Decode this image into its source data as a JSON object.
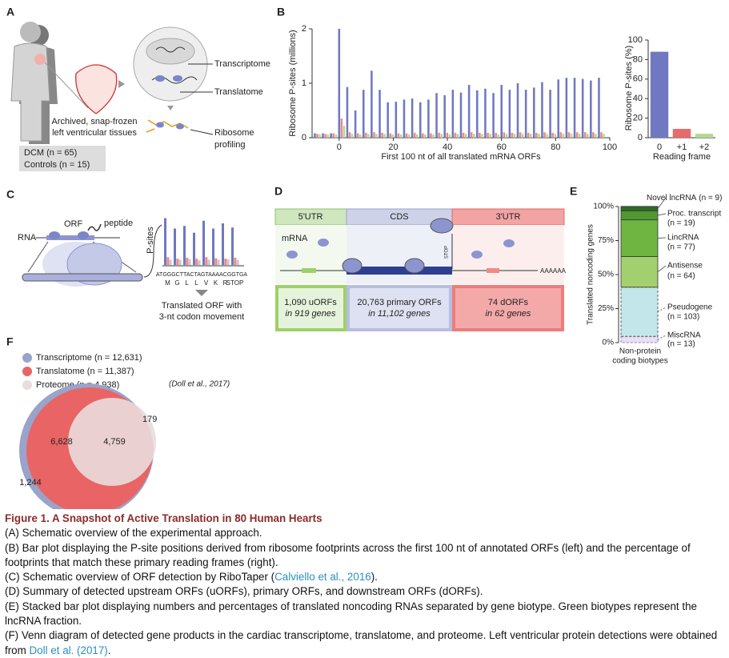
{
  "panel_labels": [
    "A",
    "B",
    "C",
    "D",
    "E",
    "F"
  ],
  "panel_a": {
    "tissue": [
      "Archived, snap-frozen",
      "left ventricular tissues"
    ],
    "dcm": "DCM (n = 65)",
    "controls": "Controls (n = 15)",
    "transcriptome": "Transcriptome",
    "translatome": "Translatome",
    "ribosome_profiling": [
      "Ribosome",
      "profiling"
    ]
  },
  "panel_b": {
    "type": "bar",
    "ylabel": "Ribosome P-sites (millions)",
    "xlabel": "First 100 nt of all translated mRNA ORFs",
    "x": [
      -9,
      -6,
      -3,
      0,
      3,
      6,
      9,
      12,
      15,
      18,
      21,
      24,
      27,
      30,
      33,
      36,
      39,
      42,
      45,
      48,
      51,
      54,
      57,
      60,
      63,
      66,
      69,
      72,
      75,
      78,
      81,
      84,
      87,
      90,
      93,
      96
    ],
    "series": [
      {
        "color": "#6f78c0",
        "values": [
          0.08,
          0.08,
          0.08,
          2.0,
          0.93,
          0.5,
          0.88,
          1.23,
          0.88,
          0.65,
          0.66,
          0.7,
          0.72,
          0.65,
          0.7,
          0.82,
          0.78,
          0.88,
          0.83,
          0.97,
          0.87,
          0.9,
          0.82,
          0.97,
          0.88,
          1.0,
          0.88,
          0.92,
          1.02,
          0.88,
          1.07,
          1.1,
          1.1,
          1.08,
          1.05,
          1.1
        ]
      },
      {
        "color": "#ec8a8a",
        "values": [
          0.07,
          0.07,
          0.08,
          0.35,
          0.1,
          0.08,
          0.09,
          0.1,
          0.09,
          0.08,
          0.08,
          0.08,
          0.09,
          0.08,
          0.08,
          0.09,
          0.09,
          0.09,
          0.09,
          0.1,
          0.09,
          0.09,
          0.09,
          0.1,
          0.09,
          0.1,
          0.09,
          0.09,
          0.1,
          0.09,
          0.1,
          0.1,
          0.1,
          0.1,
          0.1,
          0.1
        ]
      },
      {
        "color": "#b5d98f",
        "values": [
          0.06,
          0.06,
          0.06,
          0.22,
          0.07,
          0.06,
          0.07,
          0.07,
          0.07,
          0.06,
          0.06,
          0.06,
          0.06,
          0.06,
          0.06,
          0.07,
          0.06,
          0.07,
          0.07,
          0.07,
          0.07,
          0.07,
          0.06,
          0.07,
          0.07,
          0.07,
          0.07,
          0.07,
          0.07,
          0.07,
          0.07,
          0.07,
          0.07,
          0.07,
          0.07,
          0.07
        ]
      }
    ],
    "xlim": [
      -10,
      100
    ],
    "xticks": [
      0,
      20,
      40,
      60,
      80,
      100
    ],
    "ylim": [
      0,
      2
    ],
    "yticks": [
      0,
      1,
      2
    ]
  },
  "panel_b_frame": {
    "type": "bar",
    "ylabel": "Ribosome P-sites (%)",
    "xlabel": "Reading frame",
    "categories": [
      "0",
      "+1",
      "+2"
    ],
    "values": [
      88,
      9,
      4
    ],
    "colors": [
      "#6f78c0",
      "#e86a6a",
      "#b5d98f"
    ],
    "ylim": [
      0,
      100
    ],
    "yticks": [
      0,
      20,
      40,
      60,
      80,
      100
    ]
  },
  "panel_c": {
    "rna": "RNA",
    "orf": "ORF",
    "peptide": "peptide",
    "ylabel": "P-sites",
    "sequence": "ATGGGCTTACTAGTAAAACGGTGA",
    "codons": [
      "M",
      "G",
      "L",
      "L",
      "V",
      "K",
      "R",
      "STOP"
    ],
    "frame0": [
      0.9,
      0.7,
      0.75,
      0.62,
      0.85,
      0.7,
      0.8,
      0.72
    ],
    "frame1": [
      0.15,
      0.12,
      0.14,
      0.12,
      0.15,
      0.13,
      0.12,
      0.14
    ],
    "frame2": [
      0.1,
      0.1,
      0.11,
      0.09,
      0.1,
      0.1,
      0.11,
      0.1
    ],
    "caption": [
      "Translated ORF with",
      "3-nt codon movement"
    ]
  },
  "panel_d": {
    "utr5": "5'UTR",
    "cds": "CDS",
    "utr3": "3'UTR",
    "mrna": "mRNA",
    "stop": "STOP",
    "polya": "AAAAAA",
    "boxes": [
      {
        "count": "1,090 uORFs",
        "genes": "in 919 genes"
      },
      {
        "count": "20,763 primary ORFs",
        "genes": "in 11,102 genes"
      },
      {
        "count": "74 dORFs",
        "genes": "in 62 genes"
      }
    ]
  },
  "panel_e": {
    "type": "stacked-bar",
    "ylabel": "Translated noncoding genes",
    "xlabel": [
      "Non-protein",
      "coding biotypes"
    ],
    "ylim": [
      0,
      100
    ],
    "yticks": [
      {
        "value": 0,
        "label": "0%"
      },
      {
        "value": 25,
        "label": "25%"
      },
      {
        "value": 50,
        "label": "50%"
      },
      {
        "value": 75,
        "label": "75%"
      },
      {
        "value": 100,
        "label": "100%"
      }
    ],
    "segments": [
      {
        "name": "MiscRNA",
        "count": "(n = 13)",
        "value": 4.6,
        "color": "#e6e0f0"
      },
      {
        "name": "Pseudogene",
        "count": "(n = 103)",
        "value": 36.1,
        "color": "#c3e6ea"
      },
      {
        "name": "Antisense",
        "count": "(n = 64)",
        "value": 22.5,
        "color": "#a3d06e"
      },
      {
        "name": "LincRNA",
        "count": "(n = 77)",
        "value": 27.0,
        "color": "#6fb541"
      },
      {
        "name": "Proc. transcript",
        "count": "(n = 19)",
        "value": 6.7,
        "color": "#4e9a30"
      },
      {
        "name": "Novel lncRNA",
        "count": "(n = 9)",
        "value": 3.2,
        "color": "#2f6b22"
      }
    ]
  },
  "panel_f": {
    "legend": [
      {
        "name": "Transcriptome (n = 12,631)",
        "color": "#9aa3c9"
      },
      {
        "name": "Translatome (n = 11,387)",
        "color": "#e96464"
      },
      {
        "name": "Proteome (n = 4,938)",
        "cite": "(Doll et al., 2017)",
        "color": "#eadcdc"
      }
    ],
    "translatome_only": "6,628",
    "all_three": "4,759",
    "proteome_only": "179",
    "transcriptome_only": "1,244"
  },
  "caption": {
    "title": "Figure 1.  A Snapshot of Active Translation in 80 Human Hearts",
    "lines": [
      {
        "text": "(A) Schematic overview of the experimental approach."
      },
      {
        "text": "(B) Bar plot displaying the P-site positions derived from ribosome footprints across the first 100 nt of annotated ORFs (left) and the percentage of footprints that match these primary reading frames (right)."
      },
      {
        "text": "(C) Schematic overview of ORF detection by RiboTaper (",
        "link": "Calviello et al., 2016",
        "after": ")."
      },
      {
        "text": "(D) Summary of detected upstream ORFs (uORFs), primary ORFs, and downstream ORFs (dORFs)."
      },
      {
        "text": "(E) Stacked bar plot displaying numbers and percentages of translated noncoding RNAs separated by gene biotype. Green biotypes represent the lncRNA fraction."
      },
      {
        "text": "(F) Venn diagram of detected gene products in the cardiac transcriptome, translatome, and proteome. Left ventricular protein detections were obtained from ",
        "link": "Doll et al. (2017)",
        "after": "."
      }
    ]
  }
}
